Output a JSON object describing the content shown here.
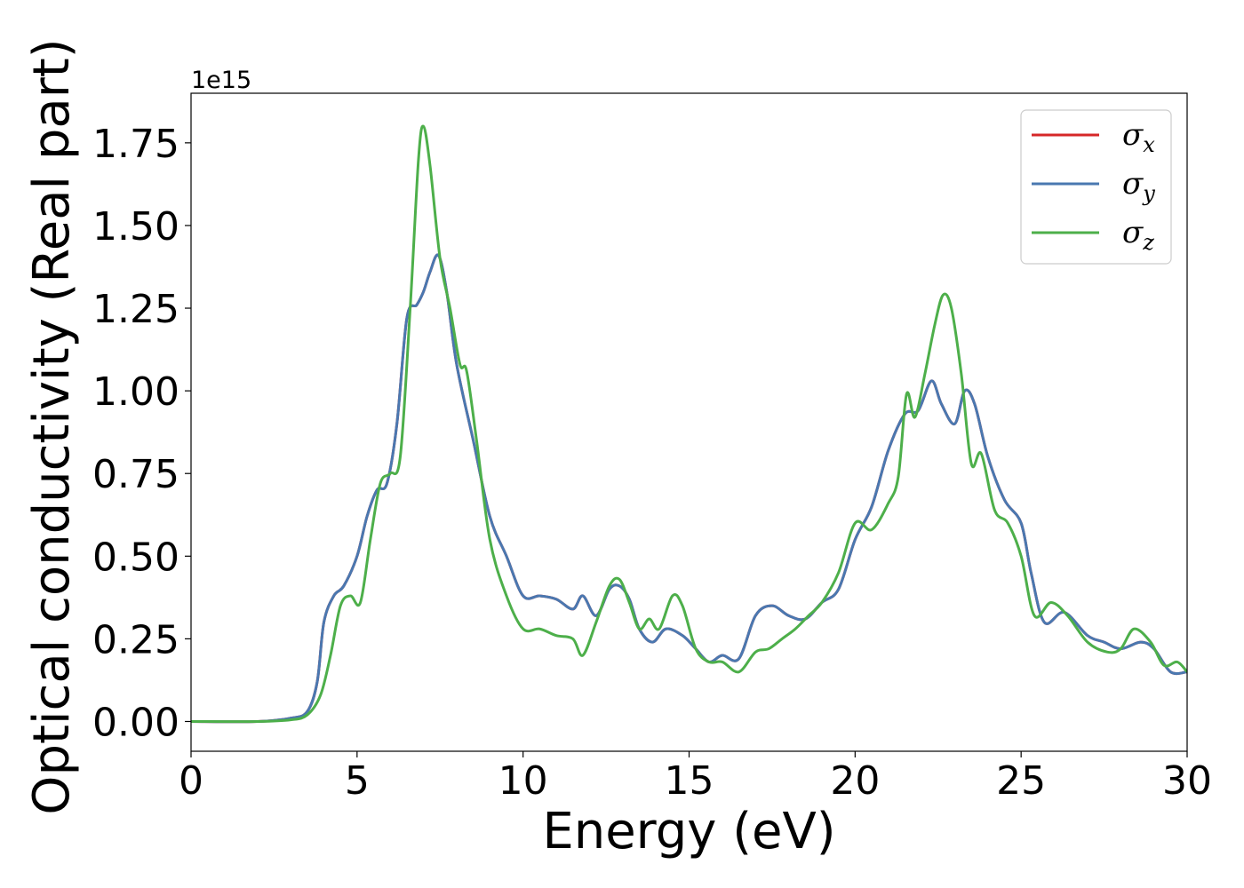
{
  "chart_data": {
    "type": "line",
    "xlabel": "Energy (eV)",
    "ylabel": "Optical conductivity (Real part)",
    "y_offset_label": "1e15",
    "xlim": [
      0,
      30
    ],
    "ylim": [
      -0.09,
      1.9
    ],
    "x_ticks": [
      0,
      5,
      10,
      15,
      20,
      25,
      30
    ],
    "x_tick_labels": [
      "0",
      "5",
      "10",
      "15",
      "20",
      "25",
      "30"
    ],
    "y_ticks": [
      0,
      0.25,
      0.5,
      0.75,
      1.0,
      1.25,
      1.5,
      1.75
    ],
    "y_tick_labels": [
      "0.00",
      "0.25",
      "0.50",
      "0.75",
      "1.00",
      "1.25",
      "1.50",
      "1.75"
    ],
    "grid": false,
    "legend_position": "top-right",
    "series": [
      {
        "name": "σ",
        "subscript": "x",
        "color": "#d62728",
        "x": [
          0,
          2,
          3,
          3.5,
          3.8,
          4.0,
          4.3,
          4.6,
          5.0,
          5.3,
          5.6,
          5.9,
          6.2,
          6.5,
          6.8,
          7.0,
          7.2,
          7.45,
          7.7,
          8.0,
          8.5,
          9.0,
          9.5,
          10.0,
          10.5,
          11.0,
          11.5,
          11.8,
          12.2,
          12.6,
          12.9,
          13.2,
          13.5,
          13.9,
          14.3,
          14.8,
          15.2,
          15.6,
          16.0,
          16.5,
          17.0,
          17.5,
          18.0,
          18.5,
          19.0,
          19.5,
          20.0,
          20.5,
          21.0,
          21.5,
          21.9,
          22.3,
          22.6,
          23.0,
          23.3,
          23.6,
          24.0,
          24.5,
          25.0,
          25.3,
          25.7,
          26.3,
          27.0,
          27.5,
          28.0,
          28.6,
          29.0,
          29.5,
          30.0
        ],
        "values": [
          0.0,
          0.0,
          0.01,
          0.03,
          0.12,
          0.3,
          0.38,
          0.41,
          0.5,
          0.62,
          0.7,
          0.72,
          0.9,
          1.22,
          1.26,
          1.3,
          1.36,
          1.41,
          1.3,
          1.08,
          0.85,
          0.62,
          0.5,
          0.38,
          0.38,
          0.37,
          0.34,
          0.38,
          0.32,
          0.4,
          0.41,
          0.37,
          0.28,
          0.24,
          0.28,
          0.26,
          0.22,
          0.18,
          0.2,
          0.19,
          0.32,
          0.35,
          0.32,
          0.31,
          0.36,
          0.4,
          0.55,
          0.65,
          0.82,
          0.93,
          0.94,
          1.03,
          0.96,
          0.9,
          1.0,
          0.96,
          0.8,
          0.67,
          0.6,
          0.45,
          0.3,
          0.33,
          0.26,
          0.24,
          0.22,
          0.24,
          0.22,
          0.15,
          0.15
        ]
      },
      {
        "name": "σ",
        "subscript": "y",
        "color": "#4a78b0",
        "x": [
          0,
          2,
          3,
          3.5,
          3.8,
          4.0,
          4.3,
          4.6,
          5.0,
          5.3,
          5.6,
          5.9,
          6.2,
          6.5,
          6.8,
          7.0,
          7.2,
          7.45,
          7.7,
          8.0,
          8.5,
          9.0,
          9.5,
          10.0,
          10.5,
          11.0,
          11.5,
          11.8,
          12.2,
          12.6,
          12.9,
          13.2,
          13.5,
          13.9,
          14.3,
          14.8,
          15.2,
          15.6,
          16.0,
          16.5,
          17.0,
          17.5,
          18.0,
          18.5,
          19.0,
          19.5,
          20.0,
          20.5,
          21.0,
          21.5,
          21.9,
          22.3,
          22.6,
          23.0,
          23.3,
          23.6,
          24.0,
          24.5,
          25.0,
          25.3,
          25.7,
          26.3,
          27.0,
          27.5,
          28.0,
          28.6,
          29.0,
          29.5,
          30.0
        ],
        "values": [
          0.0,
          0.0,
          0.01,
          0.03,
          0.12,
          0.3,
          0.38,
          0.41,
          0.5,
          0.62,
          0.7,
          0.72,
          0.9,
          1.22,
          1.26,
          1.3,
          1.36,
          1.41,
          1.3,
          1.08,
          0.85,
          0.62,
          0.5,
          0.38,
          0.38,
          0.37,
          0.34,
          0.38,
          0.32,
          0.4,
          0.41,
          0.37,
          0.28,
          0.24,
          0.28,
          0.26,
          0.22,
          0.18,
          0.2,
          0.19,
          0.32,
          0.35,
          0.32,
          0.31,
          0.36,
          0.4,
          0.55,
          0.65,
          0.82,
          0.93,
          0.94,
          1.03,
          0.96,
          0.9,
          1.0,
          0.96,
          0.8,
          0.67,
          0.6,
          0.45,
          0.3,
          0.33,
          0.26,
          0.24,
          0.22,
          0.24,
          0.22,
          0.15,
          0.15
        ]
      },
      {
        "name": "σ",
        "subscript": "z",
        "color": "#4daf4a",
        "x": [
          0,
          2,
          3,
          3.5,
          3.9,
          4.2,
          4.5,
          4.8,
          5.1,
          5.4,
          5.7,
          6.0,
          6.3,
          6.6,
          6.85,
          7.0,
          7.2,
          7.5,
          7.8,
          8.1,
          8.3,
          8.6,
          9.0,
          9.5,
          10.0,
          10.5,
          11.0,
          11.5,
          11.8,
          12.2,
          12.6,
          12.9,
          13.2,
          13.5,
          13.8,
          14.1,
          14.5,
          14.8,
          15.2,
          15.6,
          16.0,
          16.5,
          17.0,
          17.4,
          17.8,
          18.2,
          18.6,
          19.0,
          19.5,
          20.0,
          20.5,
          21.0,
          21.3,
          21.55,
          21.8,
          22.1,
          22.4,
          22.65,
          22.9,
          23.2,
          23.5,
          23.8,
          24.2,
          24.6,
          25.0,
          25.4,
          25.9,
          26.4,
          27.0,
          27.6,
          28.0,
          28.4,
          28.9,
          29.3,
          29.7,
          30.0
        ],
        "values": [
          0.0,
          0.0,
          0.005,
          0.02,
          0.08,
          0.2,
          0.35,
          0.38,
          0.36,
          0.55,
          0.72,
          0.75,
          0.8,
          1.25,
          1.7,
          1.8,
          1.68,
          1.4,
          1.25,
          1.08,
          1.06,
          0.85,
          0.55,
          0.38,
          0.28,
          0.28,
          0.26,
          0.25,
          0.2,
          0.3,
          0.41,
          0.43,
          0.36,
          0.28,
          0.31,
          0.28,
          0.38,
          0.35,
          0.22,
          0.18,
          0.18,
          0.15,
          0.21,
          0.22,
          0.25,
          0.28,
          0.32,
          0.36,
          0.45,
          0.6,
          0.58,
          0.66,
          0.74,
          0.99,
          0.92,
          1.05,
          1.2,
          1.29,
          1.25,
          1.05,
          0.78,
          0.81,
          0.64,
          0.6,
          0.5,
          0.32,
          0.36,
          0.32,
          0.24,
          0.21,
          0.22,
          0.28,
          0.24,
          0.17,
          0.18,
          0.15
        ]
      }
    ]
  }
}
